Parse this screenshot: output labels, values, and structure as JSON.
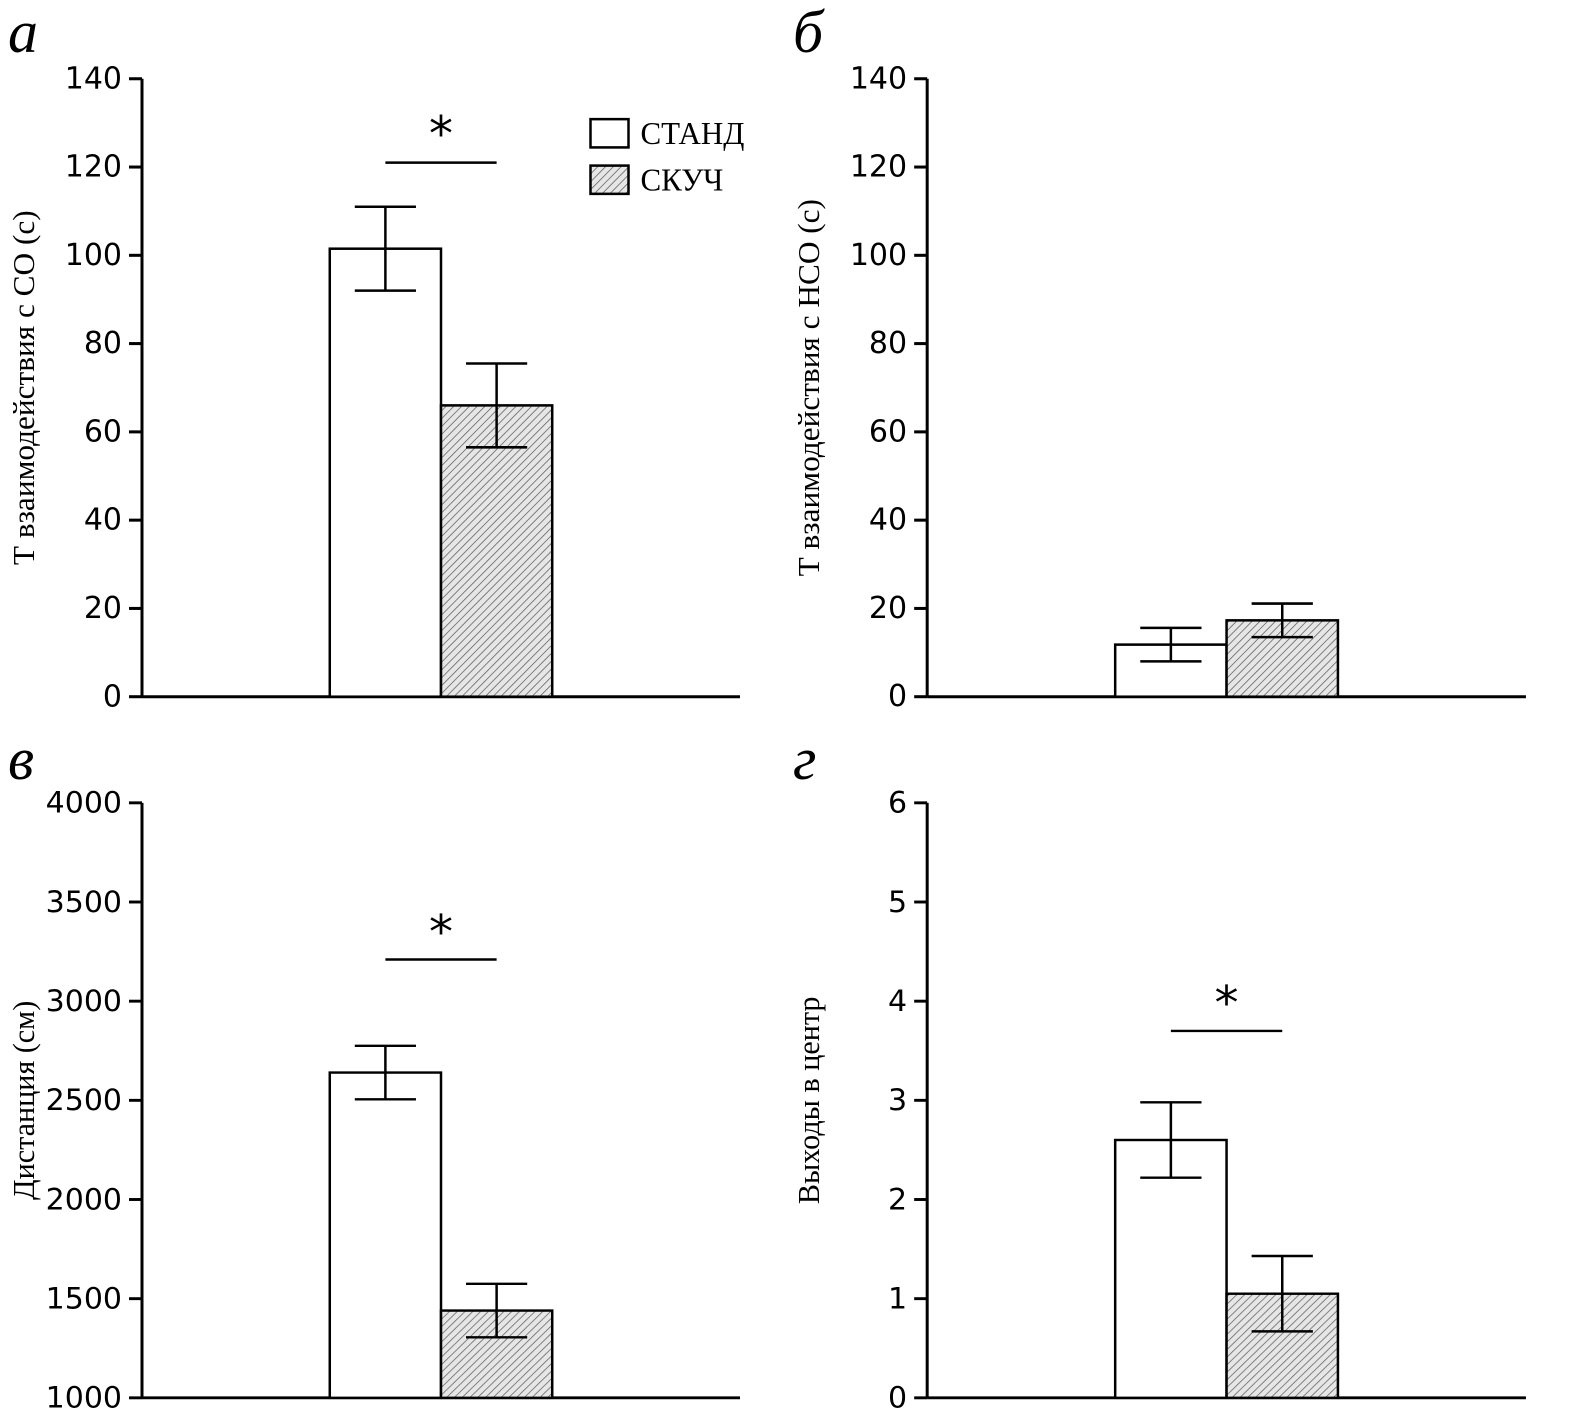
{
  "style": {
    "hatch_bg": "#e6e6e6",
    "hatch_line": "#666666",
    "axis_color": "#000000",
    "bar_open_fill": "#ffffff"
  },
  "legend": {
    "items": [
      {
        "label": "СТАНД",
        "style": "open"
      },
      {
        "label": "СКУЧ",
        "style": "hatch"
      }
    ]
  },
  "chart_data": [
    {
      "type": "bar",
      "panel": "а",
      "ylabel": "Т взаимодействия с СО (с)",
      "categories": [
        "СТАНД",
        "СКУЧ"
      ],
      "values": [
        101.5,
        66
      ],
      "errors": [
        9.5,
        9.5
      ],
      "ylim": [
        0,
        140
      ],
      "ytick_step": 20,
      "grid": false,
      "significance": {
        "show": true,
        "y": 121,
        "label": "*"
      },
      "legend_in_panel": true
    },
    {
      "type": "bar",
      "panel": "б",
      "ylabel": "Т взаимодействия с НСО (с)",
      "categories": [
        "СТАНД",
        "СКУЧ"
      ],
      "values": [
        11.8,
        17.3
      ],
      "errors": [
        3.8,
        3.8
      ],
      "ylim": [
        0,
        140
      ],
      "ytick_step": 20,
      "grid": false,
      "significance": {
        "show": false
      },
      "legend_in_panel": false
    },
    {
      "type": "bar",
      "panel": "в",
      "ylabel": "Дистанция (см)",
      "categories": [
        "СТАНД",
        "СКУЧ"
      ],
      "values": [
        2640,
        1440
      ],
      "errors": [
        135,
        135
      ],
      "ylim": [
        1000,
        4000
      ],
      "ytick_step": 500,
      "grid": false,
      "significance": {
        "show": true,
        "y": 3210,
        "label": "*"
      },
      "legend_in_panel": false
    },
    {
      "type": "bar",
      "panel": "г",
      "ylabel": "Выходы в центр",
      "categories": [
        "СТАНД",
        "СКУЧ"
      ],
      "values": [
        2.6,
        1.05
      ],
      "errors": [
        0.38,
        0.38
      ],
      "ylim": [
        0,
        6
      ],
      "ytick_step": 1,
      "grid": false,
      "significance": {
        "show": true,
        "y": 3.7,
        "label": "*"
      },
      "legend_in_panel": false
    }
  ]
}
